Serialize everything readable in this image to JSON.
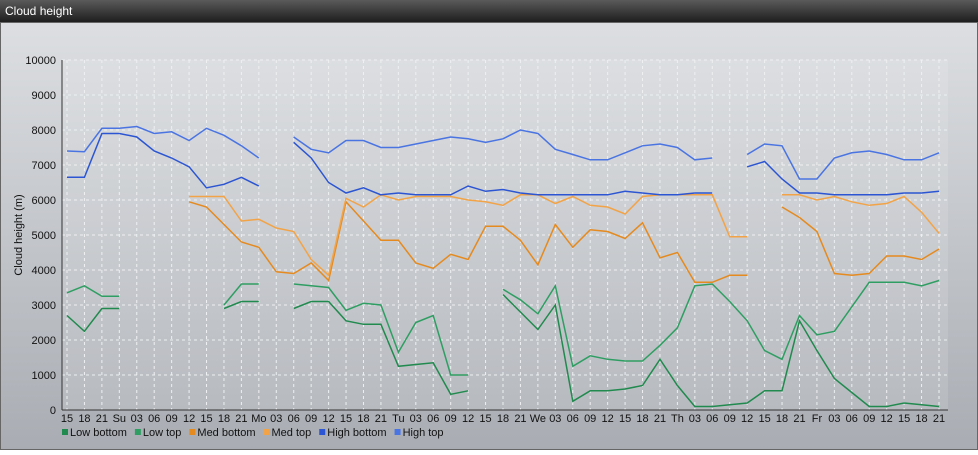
{
  "chart_data": {
    "type": "line",
    "title": "Cloud height",
    "ylabel": "Cloud height (m)",
    "categories": [
      "15",
      "18",
      "21",
      "Su",
      "03",
      "06",
      "09",
      "12",
      "15",
      "18",
      "21",
      "Mo",
      "03",
      "06",
      "09",
      "12",
      "15",
      "18",
      "21",
      "Tu",
      "03",
      "06",
      "09",
      "12",
      "15",
      "18",
      "21",
      "We",
      "03",
      "06",
      "09",
      "12",
      "15",
      "18",
      "21",
      "Th",
      "03",
      "06",
      "09",
      "12",
      "15",
      "18",
      "21",
      "Fr",
      "03",
      "06",
      "09",
      "12",
      "15",
      "18",
      "21"
    ],
    "ylim": [
      0,
      10000
    ],
    "yticks": [
      0,
      1000,
      2000,
      3000,
      4000,
      5000,
      6000,
      7000,
      8000,
      9000,
      10000
    ],
    "grid": true,
    "series": [
      {
        "name": "Low bottom",
        "color": "#218a4e",
        "values": [
          2700,
          2250,
          2900,
          2900,
          null,
          null,
          null,
          null,
          null,
          2900,
          3100,
          3100,
          null,
          2900,
          3100,
          3100,
          2550,
          2450,
          2450,
          1250,
          1300,
          1350,
          450,
          550,
          null,
          3300,
          2800,
          2300,
          3000,
          250,
          550,
          550,
          600,
          700,
          1450,
          700,
          100,
          100,
          150,
          200,
          550,
          550,
          2550,
          1700,
          900,
          500,
          100,
          100,
          200,
          150,
          100
        ]
      },
      {
        "name": "Low top",
        "color": "#2f9e62",
        "values": [
          3350,
          3550,
          3250,
          3250,
          null,
          null,
          null,
          null,
          null,
          3000,
          3600,
          3600,
          null,
          3600,
          3550,
          3500,
          2850,
          3050,
          3000,
          1650,
          2500,
          2700,
          1000,
          1000,
          null,
          3450,
          3150,
          2750,
          3550,
          1250,
          1550,
          1450,
          1400,
          1400,
          1850,
          2350,
          3550,
          3600,
          3100,
          2550,
          1700,
          1450,
          2700,
          2150,
          2250,
          2950,
          3650,
          3650,
          3650,
          3550,
          3700
        ]
      },
      {
        "name": "Med bottom",
        "color": "#e58a1f",
        "values": [
          null,
          null,
          null,
          null,
          null,
          null,
          null,
          5950,
          5800,
          5300,
          4800,
          4650,
          3950,
          3900,
          4200,
          3700,
          5950,
          5400,
          4850,
          4850,
          4200,
          4050,
          4450,
          4300,
          5250,
          5250,
          4850,
          4150,
          5300,
          4650,
          5150,
          5100,
          4900,
          5350,
          4350,
          4500,
          3650,
          3650,
          3850,
          3850,
          null,
          5800,
          5500,
          5100,
          3900,
          3850,
          3900,
          4400,
          4400,
          4300,
          4600
        ]
      },
      {
        "name": "Med top",
        "color": "#f2a347",
        "values": [
          null,
          null,
          null,
          null,
          null,
          null,
          null,
          6100,
          6100,
          6100,
          5400,
          5450,
          5200,
          5100,
          4300,
          3850,
          6050,
          5800,
          6150,
          6000,
          6100,
          6100,
          6100,
          6000,
          5950,
          5850,
          6150,
          6150,
          5900,
          6100,
          5850,
          5800,
          5600,
          6100,
          6150,
          6150,
          6150,
          6150,
          4950,
          4950,
          null,
          6150,
          6150,
          6000,
          6100,
          5950,
          5850,
          5900,
          6100,
          5650,
          5050
        ]
      },
      {
        "name": "High bottom",
        "color": "#2b55d2",
        "values": [
          6650,
          6650,
          7900,
          7900,
          7800,
          7400,
          7200,
          6950,
          6350,
          6450,
          6650,
          6400,
          null,
          7650,
          7200,
          6500,
          6200,
          6350,
          6150,
          6200,
          6150,
          6150,
          6150,
          6400,
          6250,
          6300,
          6200,
          6150,
          6150,
          6150,
          6150,
          6150,
          6250,
          6200,
          6150,
          6150,
          6200,
          6200,
          null,
          6950,
          7100,
          6600,
          6200,
          6200,
          6150,
          6150,
          6150,
          6150,
          6200,
          6200,
          6250
        ]
      },
      {
        "name": "High top",
        "color": "#4a74e2",
        "values": [
          7400,
          7380,
          8050,
          8050,
          8100,
          7900,
          7950,
          7700,
          8050,
          7850,
          7550,
          7200,
          null,
          7800,
          7450,
          7350,
          7700,
          7700,
          7500,
          7500,
          7600,
          7700,
          7800,
          7750,
          7650,
          7750,
          8000,
          7900,
          7450,
          7300,
          7150,
          7150,
          7350,
          7550,
          7600,
          7500,
          7150,
          7200,
          null,
          7300,
          7600,
          7550,
          6600,
          6600,
          7200,
          7350,
          7400,
          7300,
          7150,
          7150,
          7350
        ]
      }
    ]
  }
}
